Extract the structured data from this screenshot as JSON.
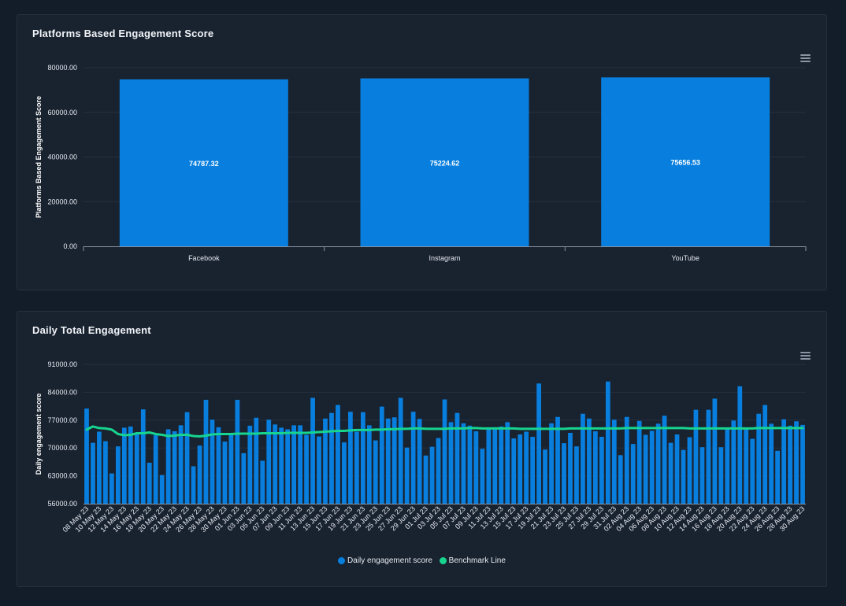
{
  "colors": {
    "bar": "#087fdf",
    "benchmark": "#17d48f",
    "grid": "#253041",
    "axis": "#8a94a3"
  },
  "chart_data": [
    {
      "type": "bar",
      "title": "Platforms Based Engagement Score",
      "ylabel": "Platforms Based Engagement Score",
      "ylim": [
        0,
        80000
      ],
      "yticks": [
        "0.00",
        "20000.00",
        "40000.00",
        "60000.00",
        "80000.00"
      ],
      "categories": [
        "Facebook",
        "Instagram",
        "YouTube"
      ],
      "values": [
        74787.32,
        75224.62,
        75656.53
      ],
      "value_labels": [
        "74787.32",
        "75224.62",
        "75656.53"
      ],
      "grid": true
    },
    {
      "type": "bar",
      "title": "Daily Total Engagement",
      "ylabel": "Daily engagement score",
      "ylim": [
        56000,
        91000
      ],
      "yticks": [
        "56000.00",
        "63000.00",
        "70000.00",
        "77000.00",
        "84000.00",
        "91000.00"
      ],
      "start_label": "08 May 23",
      "x_labels": [
        "08 May 23",
        "10 May 23",
        "12 May 23",
        "14 May 23",
        "16 May 23",
        "18 May 23",
        "20 May 23",
        "22 May 23",
        "24 May 23",
        "26 May 23",
        "28 May 23",
        "30 May 23",
        "01 Jun 23",
        "03 Jun 23",
        "05 Jun 23",
        "07 Jun 23",
        "09 Jun 23",
        "11 Jun 23",
        "13 Jun 23",
        "15 Jun 23",
        "17 Jun 23",
        "19 Jun 23",
        "21 Jun 23",
        "23 Jun 23",
        "25 Jun 23",
        "27 Jun 23",
        "29 Jun 23",
        "01 Jul 23",
        "03 Jul 23",
        "05 Jul 23",
        "07 Jul 23",
        "09 Jul 23",
        "11 Jul 23",
        "13 Jul 23",
        "15 Jul 23",
        "17 Jul 23",
        "19 Jul 23",
        "21 Jul 23",
        "23 Jul 23",
        "25 Jul 23",
        "27 Jul 23",
        "29 Jul 23",
        "31 Jul 23",
        "02 Aug 23",
        "04 Aug 23",
        "06 Aug 23",
        "08 Aug 23",
        "10 Aug 23",
        "12 Aug 23",
        "14 Aug 23",
        "16 Aug 23",
        "18 Aug 23",
        "20 Aug 23",
        "22 Aug 23",
        "24 Aug 23",
        "26 Aug 23",
        "28 Aug 23",
        "30 Aug 23"
      ],
      "series": [
        {
          "name": "Daily engagement score",
          "values": [
            79900,
            71300,
            74100,
            71700,
            63600,
            70400,
            75100,
            75400,
            73600,
            79700,
            66300,
            73200,
            63200,
            74700,
            74200,
            75700,
            79000,
            65400,
            70600,
            82100,
            77100,
            75200,
            71600,
            73400,
            82100,
            68700,
            75600,
            77600,
            66800,
            77100,
            75900,
            75100,
            74700,
            75700,
            75700,
            73300,
            82600,
            72900,
            77400,
            78800,
            80800,
            71400,
            79100,
            74100,
            79000,
            75700,
            71900,
            80400,
            77400,
            77700,
            82600,
            70100,
            79100,
            77300,
            68100,
            70300,
            72500,
            82200,
            76500,
            78800,
            76200,
            75600,
            74200,
            69800,
            74700,
            75200,
            75400,
            76500,
            72400,
            73400,
            74100,
            72800,
            86200,
            69600,
            76200,
            77800,
            71200,
            73800,
            70400,
            78600,
            77400,
            74200,
            72800,
            86700,
            77100,
            68200,
            77800,
            71000,
            76800,
            73300,
            74300,
            76100,
            78100,
            71300,
            73400,
            69500,
            72700,
            79600,
            70200,
            79600,
            82400,
            70200,
            75000,
            76900,
            85500,
            75000,
            72300,
            78600,
            80800,
            76100,
            69300,
            77200,
            75600,
            76700,
            75800
          ],
          "type": "bar"
        },
        {
          "name": "Benchmark Line",
          "values": [
            74600,
            75400,
            75000,
            74900,
            74600,
            73500,
            73200,
            73300,
            73700,
            73700,
            73900,
            73500,
            73300,
            73000,
            73100,
            73300,
            73300,
            73000,
            72900,
            73100,
            73400,
            73500,
            73500,
            73500,
            73600,
            73600,
            73600,
            73600,
            73700,
            73700,
            73700,
            73700,
            73800,
            73800,
            73800,
            73800,
            73900,
            74000,
            74100,
            74200,
            74300,
            74300,
            74400,
            74500,
            74500,
            74500,
            74600,
            74600,
            74700,
            74700,
            74800,
            74800,
            74900,
            74900,
            74800,
            74800,
            74800,
            74800,
            74900,
            74900,
            74900,
            75000,
            75000,
            74900,
            74900,
            74900,
            74900,
            74900,
            74900,
            74800,
            74800,
            74800,
            74800,
            74800,
            74800,
            74800,
            74800,
            74900,
            74900,
            74900,
            74900,
            74900,
            74900,
            74900,
            74900,
            74900,
            75000,
            75000,
            75000,
            75000,
            75000,
            75000,
            75000,
            75000,
            75000,
            75000,
            74900,
            74900,
            74900,
            74900,
            74900,
            74900,
            74900,
            74900,
            74900,
            74900,
            74900,
            75000,
            75000,
            75000,
            75000,
            75000,
            75000,
            75000,
            75000
          ],
          "type": "line"
        }
      ],
      "legend": "bottom-center",
      "grid": true
    }
  ]
}
